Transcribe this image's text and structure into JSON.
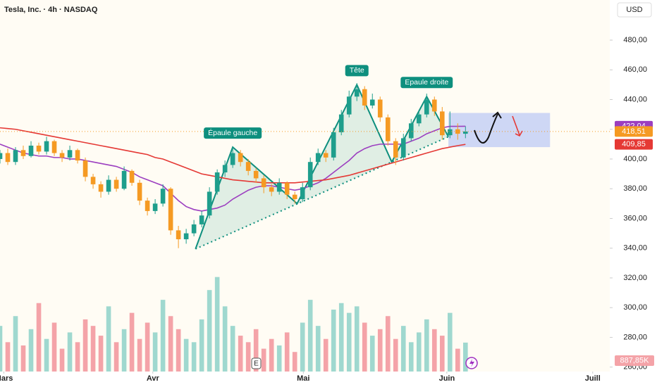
{
  "chart_data": {
    "type": "candlestick",
    "title": "Tesla, Inc. · 4h · NASDAQ",
    "currency": "USD",
    "xlim": [
      0,
      78.6
    ],
    "xticks": [
      {
        "value": 0.5,
        "label": "Mars"
      },
      {
        "value": 19.7,
        "label": "Avr"
      },
      {
        "value": 39.1,
        "label": "Mai"
      },
      {
        "value": 57.6,
        "label": "Juin"
      },
      {
        "value": 76.4,
        "label": "Juill"
      }
    ],
    "ylim": [
      257,
      507
    ],
    "yticks": [
      {
        "value": 480,
        "label": "480,00"
      },
      {
        "value": 460,
        "label": "460,00"
      },
      {
        "value": 440,
        "label": "440,00"
      },
      {
        "value": 420,
        "label": "420,00"
      },
      {
        "value": 400,
        "label": "400,00"
      },
      {
        "value": 380,
        "label": "380,00"
      },
      {
        "value": 360,
        "label": "360,00"
      },
      {
        "value": 340,
        "label": "340,00"
      },
      {
        "value": 320,
        "label": "320,00"
      },
      {
        "value": 300,
        "label": "300,00"
      },
      {
        "value": 280,
        "label": "280,00"
      },
      {
        "value": 260,
        "label": "260,00"
      }
    ],
    "up_color": "#1e9e8c",
    "down_color": "#f59a23",
    "open": [
      400,
      404,
      398,
      406,
      402,
      409,
      405,
      412,
      404,
      401,
      406,
      399,
      388,
      383,
      378,
      386,
      380,
      392,
      384,
      372,
      365,
      370,
      380,
      352,
      346,
      350,
      356,
      362,
      378,
      391,
      396,
      404,
      398,
      392,
      387,
      381,
      378,
      384,
      376,
      373,
      381,
      398,
      404,
      401,
      418,
      430,
      442,
      447,
      436,
      440,
      428,
      412,
      401,
      414,
      424,
      430,
      440,
      432,
      416,
      420,
      417
    ],
    "high": [
      406,
      407,
      408,
      409,
      412,
      411,
      415,
      413,
      406,
      409,
      407,
      401,
      390,
      385,
      389,
      388,
      395,
      393,
      386,
      374,
      373,
      383,
      381,
      355,
      353,
      359,
      365,
      381,
      393,
      399,
      408,
      406,
      400,
      394,
      389,
      383,
      387,
      385,
      378,
      384,
      401,
      407,
      406,
      421,
      433,
      446,
      451,
      449,
      444,
      442,
      430,
      414,
      417,
      427,
      433,
      444,
      442,
      435,
      432,
      424,
      422
    ],
    "low": [
      397,
      396,
      396,
      400,
      401,
      403,
      403,
      402,
      398,
      399,
      397,
      385,
      380,
      374,
      376,
      378,
      379,
      382,
      369,
      362,
      363,
      368,
      349,
      340,
      343,
      348,
      354,
      360,
      376,
      388,
      394,
      395,
      389,
      384,
      377,
      375,
      376,
      373,
      370,
      371,
      379,
      396,
      398,
      399,
      416,
      428,
      439,
      433,
      434,
      425,
      409,
      396,
      399,
      412,
      422,
      428,
      429,
      413,
      414,
      413,
      414
    ],
    "close": [
      404,
      398,
      406,
      402,
      409,
      405,
      412,
      404,
      401,
      406,
      399,
      388,
      383,
      378,
      386,
      380,
      392,
      384,
      372,
      365,
      370,
      380,
      352,
      346,
      350,
      356,
      362,
      378,
      391,
      396,
      404,
      398,
      392,
      387,
      381,
      378,
      384,
      376,
      373,
      381,
      398,
      404,
      401,
      418,
      430,
      442,
      447,
      436,
      440,
      428,
      412,
      401,
      414,
      424,
      430,
      440,
      432,
      416,
      420,
      417,
      418.51
    ],
    "volume": [
      1400,
      900,
      1700,
      800,
      1300,
      2100,
      1000,
      1500,
      700,
      1200,
      900,
      1600,
      1400,
      1100,
      2000,
      900,
      1300,
      1800,
      1000,
      1500,
      1200,
      2200,
      1700,
      1300,
      1000,
      900,
      1600,
      2500,
      2900,
      2000,
      1400,
      1100,
      900,
      1300,
      700,
      1000,
      800,
      1200,
      600,
      1500,
      2200,
      1400,
      1000,
      1900,
      2100,
      1800,
      2000,
      1500,
      1100,
      1300,
      1700,
      1000,
      1400,
      900,
      1200,
      1600,
      1300,
      1100,
      1800,
      700,
      887.85
    ],
    "volume_lim": [
      0,
      11400
    ],
    "volume_last_label": "887,85K",
    "volume_up_color": "#9fd8cf",
    "volume_down_color": "#f4a3a8",
    "ma_series": [
      {
        "color": "#9c3fc0",
        "values": [
          410,
          408,
          406,
          404,
          403,
          402,
          402,
          401,
          401,
          400,
          400,
          399,
          398,
          397,
          396,
          395,
          393,
          391,
          388,
          386,
          384,
          382,
          377,
          372,
          368,
          366,
          365,
          366,
          367,
          369,
          373,
          376,
          379,
          381,
          382,
          382,
          381,
          380,
          379,
          380,
          382,
          384,
          387,
          391,
          395,
          399,
          404,
          407,
          409,
          410,
          410,
          410,
          410,
          412,
          414,
          417,
          419,
          421,
          422,
          422,
          422.04
        ]
      },
      {
        "color": "#e53935",
        "values": [
          421,
          420.5,
          420,
          419,
          418,
          417,
          416,
          415,
          414,
          413,
          412,
          411,
          410,
          409,
          408,
          407,
          406,
          405,
          404,
          403,
          401,
          400,
          398,
          396,
          394,
          392,
          390,
          389,
          388,
          387,
          386,
          385.5,
          385,
          384.5,
          384,
          384,
          384,
          384,
          384,
          384.5,
          385,
          385.5,
          386,
          387,
          388,
          389,
          390.5,
          392,
          393.5,
          395,
          396.5,
          398,
          399.5,
          401,
          402.5,
          404,
          405.5,
          407,
          408,
          409,
          409.85
        ]
      }
    ],
    "price_tags": [
      {
        "value": 422.04,
        "label": "422,04",
        "color": "#9c3fc0"
      },
      {
        "value": 418.51,
        "label": "418,51",
        "color": "#f59a23"
      },
      {
        "value": 409.85,
        "label": "409,85",
        "color": "#e53935"
      }
    ],
    "pattern": {
      "color": "#0e8f7e",
      "points": [
        {
          "x": 25.2,
          "y": 339.5
        },
        {
          "x": 30,
          "y": 408,
          "label": "Épaule gauche"
        },
        {
          "x": 38.3,
          "y": 370
        },
        {
          "x": 46,
          "y": 450,
          "label": "Tête"
        },
        {
          "x": 50.5,
          "y": 398
        },
        {
          "x": 55,
          "y": 442,
          "label": "Epaule droite"
        },
        {
          "x": 57.8,
          "y": 415
        }
      ]
    },
    "projection_box": {
      "x": [
        57.8,
        70.9
      ],
      "y": [
        408,
        431
      ],
      "color": "#b9c8f5"
    },
    "earnings_marker": "E"
  }
}
